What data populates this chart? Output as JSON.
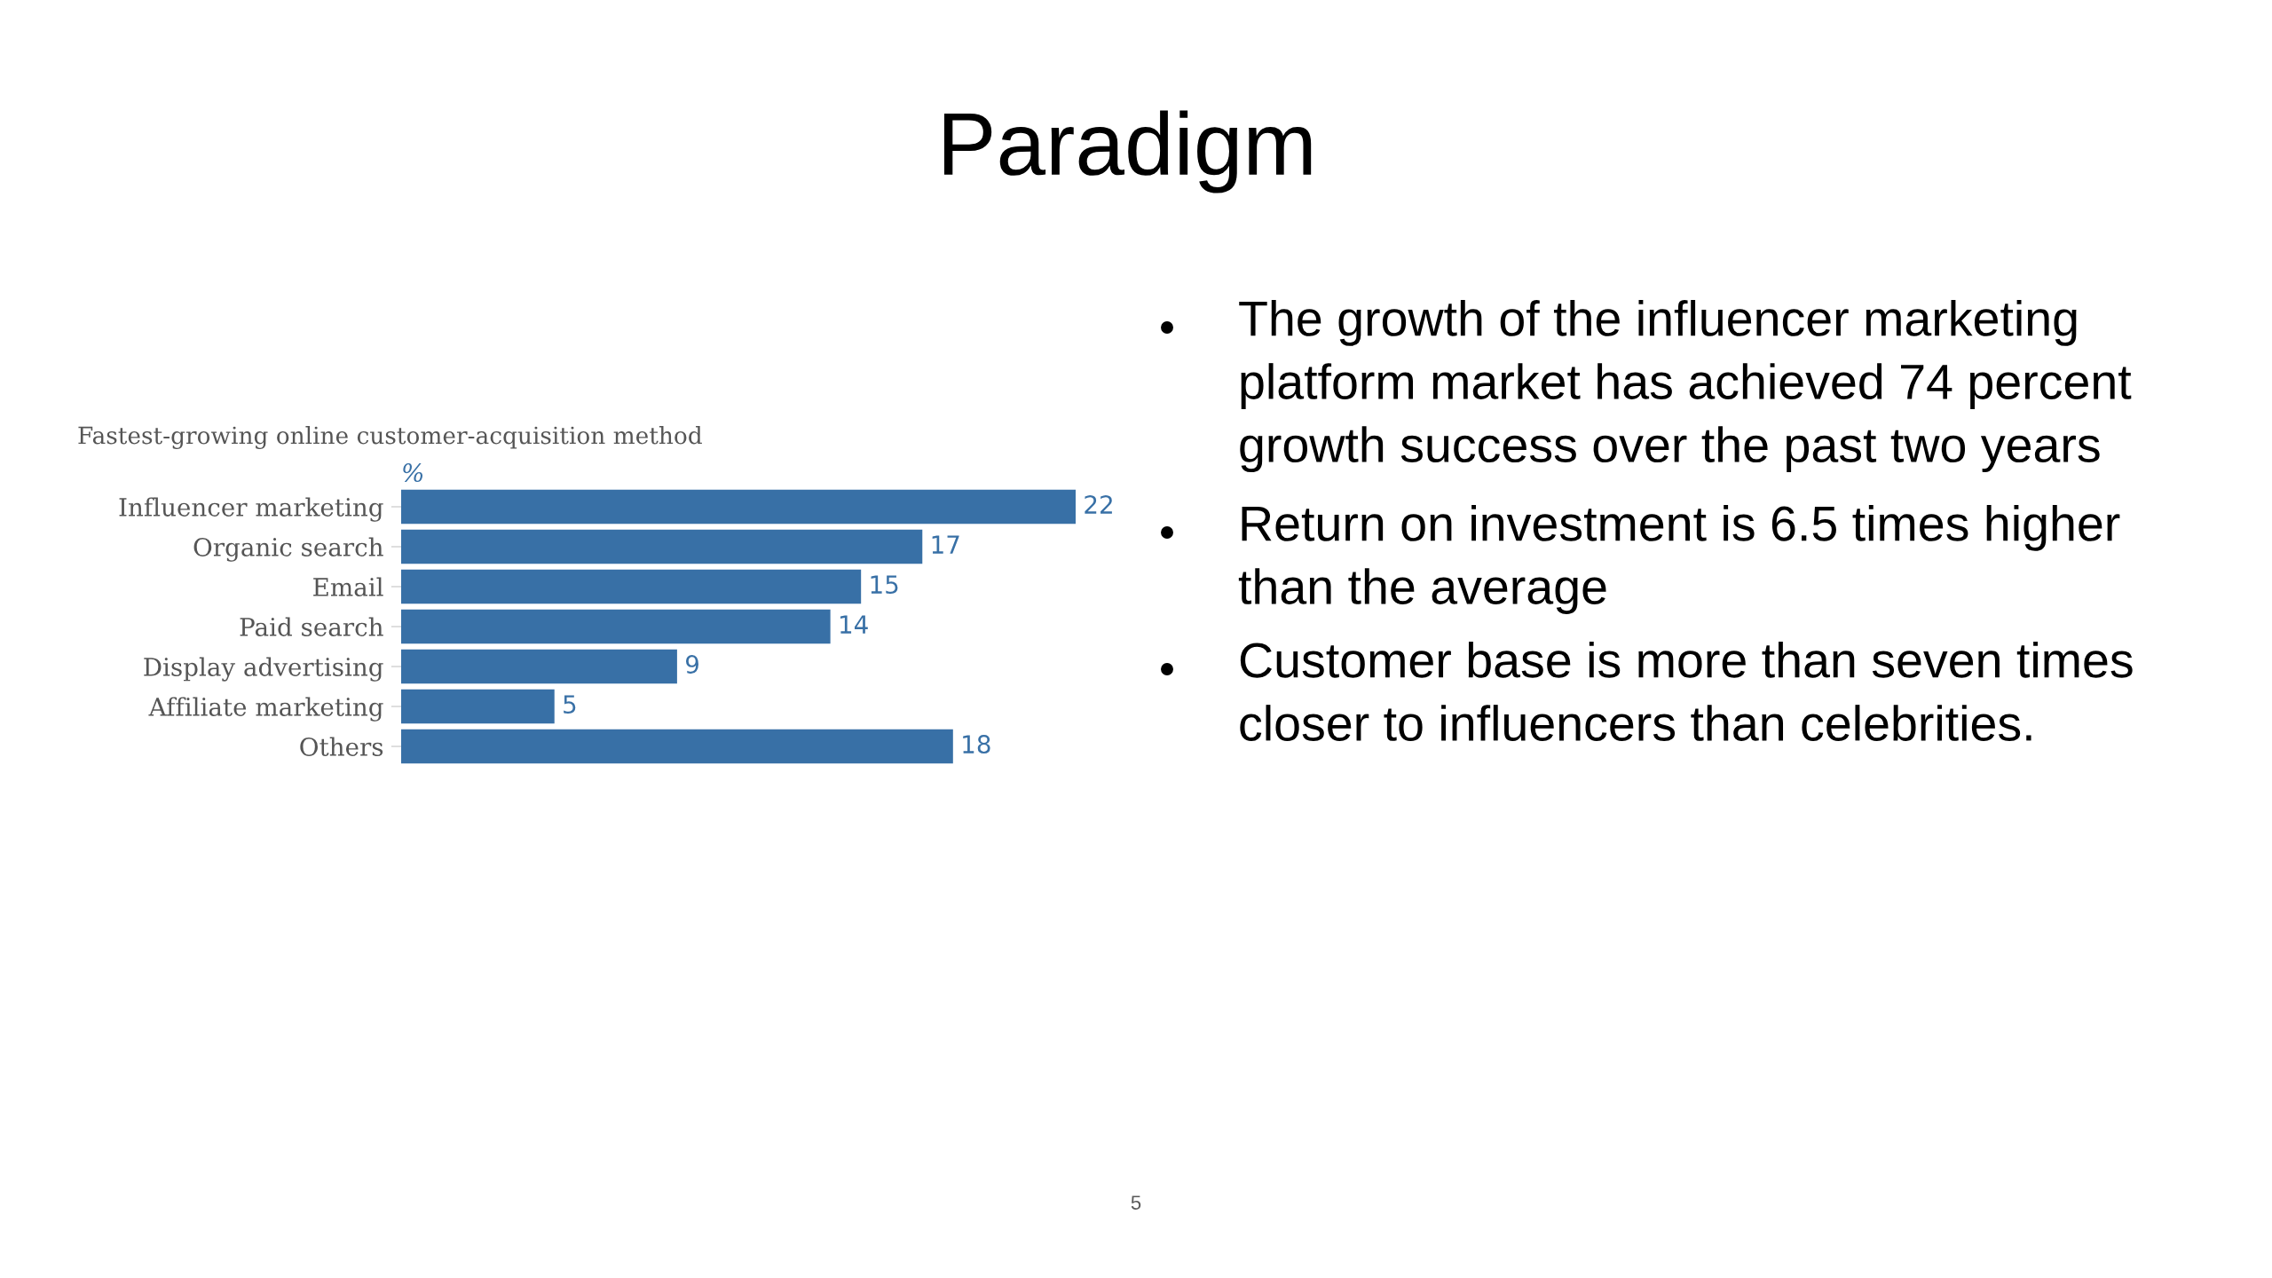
{
  "chart_data": {
    "type": "bar",
    "orientation": "horizontal",
    "title": "Paradigm",
    "subtitle": "Fastest-growing online customer-acquisition method",
    "xlabel": "%",
    "categories": [
      "Influencer marketing",
      "Organic search",
      "Email",
      "Paid search",
      "Display advertising",
      "Affiliate marketing",
      "Others"
    ],
    "values": [
      22,
      17,
      15,
      14,
      9,
      5,
      18
    ],
    "color": "#3870a6",
    "data_labels": true,
    "xlim": [
      0,
      22
    ],
    "tick_labels": "y",
    "grid": false,
    "legend": false,
    "annotations": [
      "The growth of the influencer marketing platform market has achieved 74 percent growth success over the past two years",
      "Return on investment is 6.5 times higher than the average",
      "Customer base is more than seven times closer to influencers than celebrities.",
      "5"
    ]
  }
}
